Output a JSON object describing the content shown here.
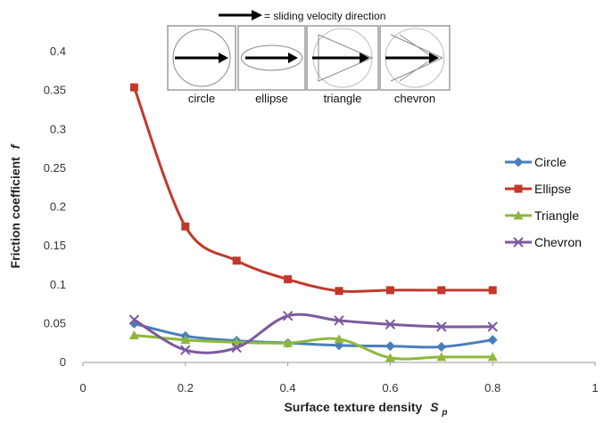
{
  "chart_data": {
    "type": "line",
    "title": "",
    "xlabel": "Surface texture density",
    "xlabel_symbol": "S",
    "xlabel_subscript": "p",
    "ylabel": "Friction coefficient",
    "ylabel_symbol": "f",
    "xlim": [
      0,
      1
    ],
    "ylim": [
      0,
      0.4
    ],
    "xticks": [
      0,
      0.2,
      0.4,
      0.6,
      0.8,
      1
    ],
    "yticks": [
      0,
      0.05,
      0.1,
      0.15,
      0.2,
      0.25,
      0.3,
      0.35,
      0.4
    ],
    "xtick_labels": [
      "0",
      "0.2",
      "0.4",
      "0.6",
      "0.8",
      "1"
    ],
    "ytick_labels": [
      "0",
      "0.05",
      "0.1",
      "0.15",
      "0.2",
      "0.25",
      "0.3",
      "0.35",
      "0.4"
    ],
    "grid": false,
    "legend_position": "right",
    "x": [
      0.1,
      0.2,
      0.3,
      0.4,
      0.5,
      0.6,
      0.7,
      0.8
    ],
    "series": [
      {
        "name": "Circle",
        "color": "#4a7ebb",
        "marker": "diamond",
        "values": [
          0.05,
          0.034,
          0.028,
          0.025,
          0.022,
          0.021,
          0.02,
          0.029
        ]
      },
      {
        "name": "Ellipse",
        "color": "#c0392b",
        "marker": "square",
        "values": [
          0.354,
          0.175,
          0.131,
          0.107,
          0.092,
          0.093,
          0.093,
          0.093
        ]
      },
      {
        "name": "Triangle",
        "color": "#8db83c",
        "marker": "triangle",
        "values": [
          0.035,
          0.029,
          0.026,
          0.025,
          0.03,
          0.006,
          0.007,
          0.007
        ]
      },
      {
        "name": "Chevron",
        "color": "#7d5aa0",
        "marker": "x",
        "values": [
          0.055,
          0.016,
          0.019,
          0.06,
          0.054,
          0.049,
          0.046,
          0.046
        ]
      }
    ]
  },
  "inset": {
    "header": "= sliding velocity direction",
    "shapes": [
      {
        "name": "circle",
        "label": "circle"
      },
      {
        "name": "ellipse",
        "label": "ellipse"
      },
      {
        "name": "triangle",
        "label": "triangle"
      },
      {
        "name": "chevron",
        "label": "chevron"
      }
    ]
  }
}
